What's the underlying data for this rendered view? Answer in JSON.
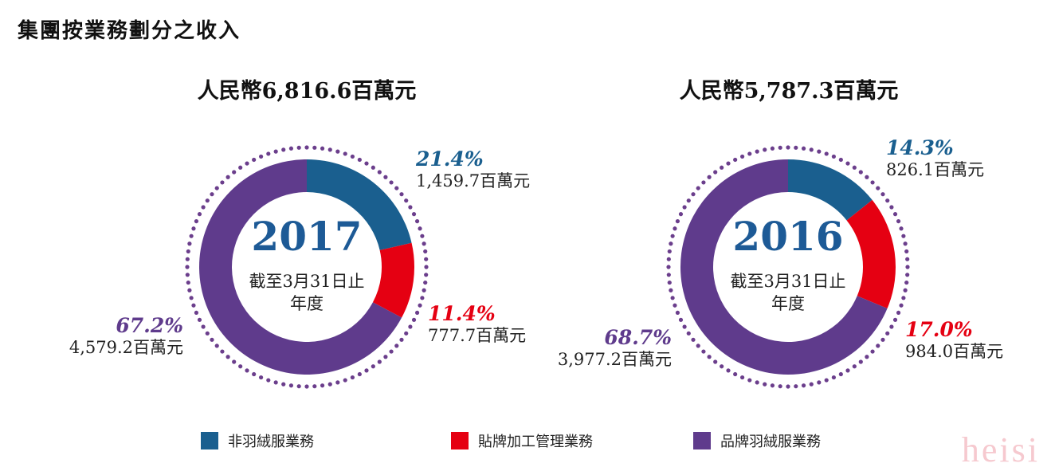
{
  "page": {
    "title": "集團按業務劃分之收入",
    "watermark": "heisi"
  },
  "colors": {
    "non_down": "#1a5f8f",
    "oem": "#e50012",
    "down": "#5f3b8c",
    "dots": "#6b3e8c",
    "year": "#1d5a96"
  },
  "legend": [
    {
      "label": "非羽絨服業務",
      "color": "#1a5f8f"
    },
    {
      "label": "貼牌加工管理業務",
      "color": "#e50012"
    },
    {
      "label": "品牌羽絨服業務",
      "color": "#5f3b8c"
    }
  ],
  "chart_data": [
    {
      "type": "pie",
      "style": "donut",
      "title": "人民幣6,816.6百萬元",
      "center_year": "2017",
      "center_subtitle_line1": "截至3月31日止",
      "center_subtitle_line2": "年度",
      "total": 6816.6,
      "unit": "百萬元",
      "slices": [
        {
          "name": "非羽絨服業務",
          "percent": 21.4,
          "value": 1459.7,
          "percent_label": "21.4%",
          "amount_label": "1,459.7百萬元",
          "color": "#1a5f8f"
        },
        {
          "name": "貼牌加工管理業務",
          "percent": 11.4,
          "value": 777.7,
          "percent_label": "11.4%",
          "amount_label": "777.7百萬元",
          "color": "#e50012"
        },
        {
          "name": "品牌羽絨服業務",
          "percent": 67.2,
          "value": 4579.2,
          "percent_label": "67.2%",
          "amount_label": "4,579.2百萬元",
          "color": "#5f3b8c"
        }
      ]
    },
    {
      "type": "pie",
      "style": "donut",
      "title": "人民幣5,787.3百萬元",
      "center_year": "2016",
      "center_subtitle_line1": "截至3月31日止",
      "center_subtitle_line2": "年度",
      "total": 5787.3,
      "unit": "百萬元",
      "slices": [
        {
          "name": "非羽絨服業務",
          "percent": 14.3,
          "value": 826.1,
          "percent_label": "14.3%",
          "amount_label": "826.1百萬元",
          "color": "#1a5f8f"
        },
        {
          "name": "貼牌加工管理業務",
          "percent": 17.0,
          "value": 984.0,
          "percent_label": "17.0%",
          "amount_label": "984.0百萬元",
          "color": "#e50012"
        },
        {
          "name": "品牌羽絨服業務",
          "percent": 68.7,
          "value": 3977.2,
          "percent_label": "68.7%",
          "amount_label": "3,977.2百萬元",
          "color": "#5f3b8c"
        }
      ]
    }
  ]
}
